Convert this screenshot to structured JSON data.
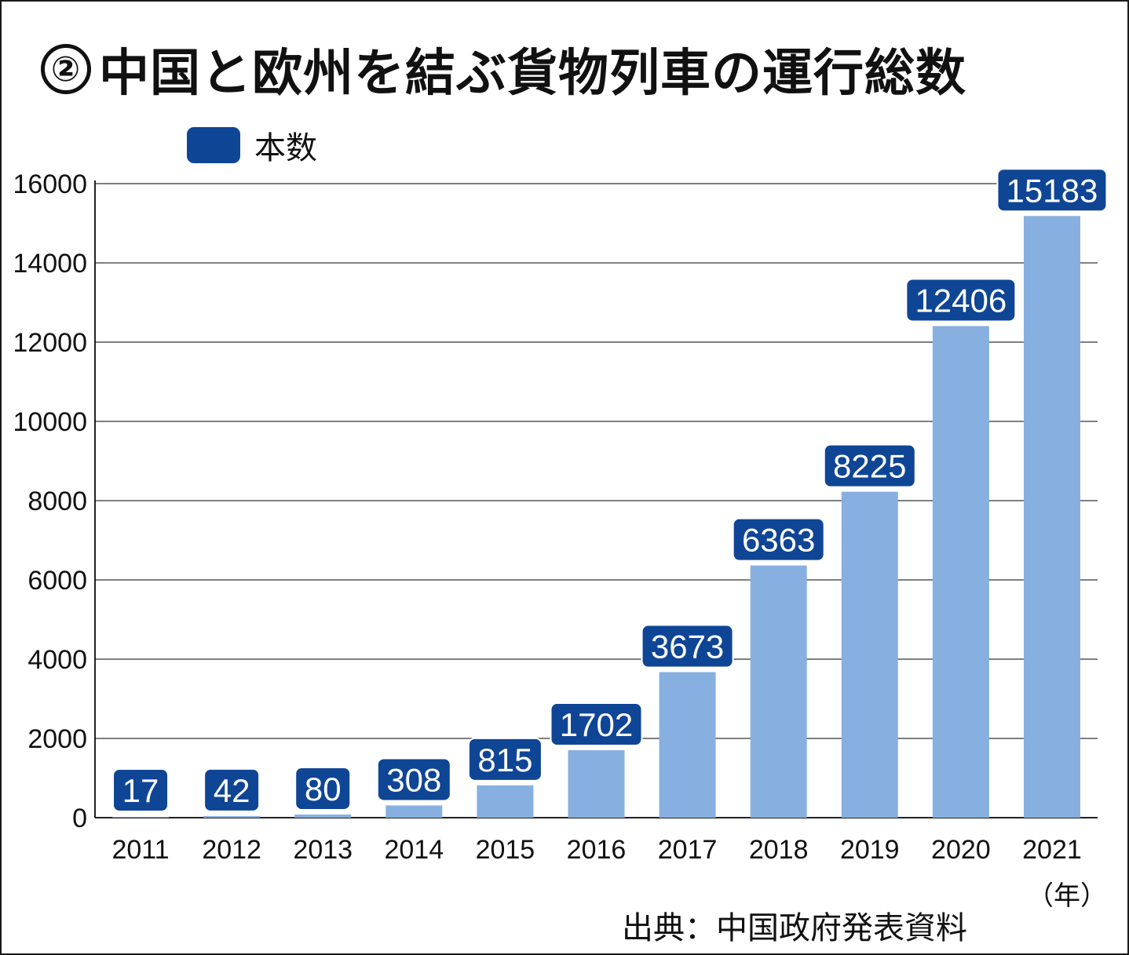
{
  "chart_data": {
    "type": "bar",
    "title_number": "②",
    "title": "中国と欧州を結ぶ貨物列車の運行総数",
    "legend": [
      "本数"
    ],
    "categories": [
      "2011",
      "2012",
      "2013",
      "2014",
      "2015",
      "2016",
      "2017",
      "2018",
      "2019",
      "2020",
      "2021"
    ],
    "series": [
      {
        "name": "本数",
        "values": [
          17,
          42,
          80,
          308,
          815,
          1702,
          3673,
          6363,
          8225,
          12406,
          15183
        ]
      }
    ],
    "value_labels": [
      "17",
      "42",
      "80",
      "308",
      "815",
      "1702",
      "3673",
      "6363",
      "8225",
      "12406",
      "15183"
    ],
    "ylim": [
      0,
      16000
    ],
    "yticks": [
      0,
      2000,
      4000,
      6000,
      8000,
      10000,
      12000,
      14000,
      16000
    ],
    "ytick_labels": [
      "0",
      "2000",
      "4000",
      "6000",
      "8000",
      "10000",
      "12000",
      "14000",
      "16000"
    ],
    "xlabel": "（年）",
    "ylabel": "",
    "grid": true,
    "legend_position": "top-left",
    "source": "出典：中国政府発表資料"
  },
  "colors": {
    "bar": "#87b0e0",
    "label_box": "#0f4595",
    "legend_swatch": "#0f4595",
    "grid": "#555555",
    "axis": "#222222"
  }
}
